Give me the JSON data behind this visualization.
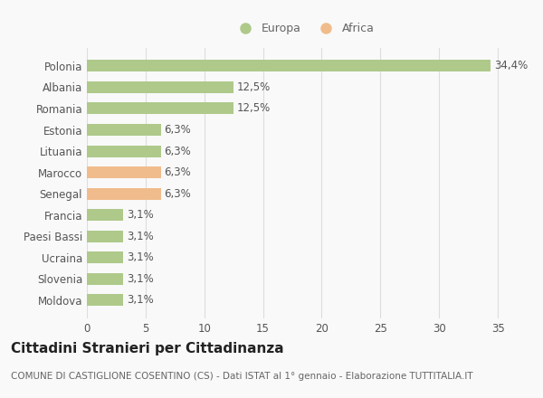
{
  "categories": [
    "Polonia",
    "Albania",
    "Romania",
    "Estonia",
    "Lituania",
    "Marocco",
    "Senegal",
    "Francia",
    "Paesi Bassi",
    "Ucraina",
    "Slovenia",
    "Moldova"
  ],
  "values": [
    34.4,
    12.5,
    12.5,
    6.3,
    6.3,
    6.3,
    6.3,
    3.1,
    3.1,
    3.1,
    3.1,
    3.1
  ],
  "labels": [
    "34,4%",
    "12,5%",
    "12,5%",
    "6,3%",
    "6,3%",
    "6,3%",
    "6,3%",
    "3,1%",
    "3,1%",
    "3,1%",
    "3,1%",
    "3,1%"
  ],
  "colors": [
    "#aec98a",
    "#aec98a",
    "#aec98a",
    "#aec98a",
    "#aec98a",
    "#f0bc8c",
    "#f0bc8c",
    "#aec98a",
    "#aec98a",
    "#aec98a",
    "#aec98a",
    "#aec98a"
  ],
  "legend_europa_color": "#aec98a",
  "legend_africa_color": "#f0bc8c",
  "xlim": [
    0,
    37
  ],
  "xticks": [
    0,
    5,
    10,
    15,
    20,
    25,
    30,
    35
  ],
  "title": "Cittadini Stranieri per Cittadinanza",
  "subtitle": "COMUNE DI CASTIGLIONE COSENTINO (CS) - Dati ISTAT al 1° gennaio - Elaborazione TUTTITALIA.IT",
  "bg_color": "#f9f9f9",
  "grid_color": "#dddddd",
  "bar_height": 0.55,
  "label_fontsize": 8.5,
  "ytick_fontsize": 8.5,
  "xtick_fontsize": 8.5,
  "title_fontsize": 11,
  "subtitle_fontsize": 7.5
}
